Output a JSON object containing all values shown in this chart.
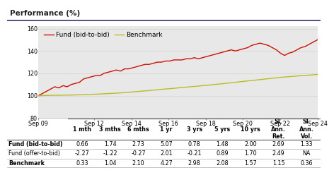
{
  "title": "Performance (%)",
  "title_color": "#3d2b6e",
  "title_underline_color": "#3d2b6e",
  "bg_color": "#ffffff",
  "chart_bg": "#e8e8e8",
  "fund_color": "#cc1100",
  "benchmark_color": "#bbbb22",
  "ylim": [
    80,
    162
  ],
  "yticks": [
    80,
    100,
    120,
    140,
    160
  ],
  "x_labels": [
    "Sep 09",
    "Sep 12",
    "Sep 14",
    "Sep 16",
    "Sep 18",
    "Sep 20",
    "Sep 22",
    "Sep 24"
  ],
  "x_positions": [
    0,
    3,
    5,
    7,
    9,
    11,
    13,
    15
  ],
  "legend_fund": "Fund (bid-to-bid)",
  "legend_bench": "Benchmark",
  "fund_data": [
    100,
    102,
    104,
    106,
    108,
    107,
    109,
    108,
    110,
    111,
    112,
    115,
    116,
    117,
    118,
    118,
    120,
    121,
    122,
    123,
    122,
    124,
    124,
    125,
    126,
    127,
    128,
    128,
    129,
    130,
    130,
    131,
    131,
    132,
    132,
    132,
    133,
    133,
    134,
    133,
    134,
    135,
    136,
    137,
    138,
    139,
    140,
    141,
    140,
    141,
    142,
    143,
    145,
    146,
    147,
    146,
    145,
    143,
    141,
    138,
    136,
    138,
    139,
    141,
    143,
    144,
    146,
    148,
    150
  ],
  "bench_data": [
    100,
    100.1,
    100.2,
    100.3,
    100.4,
    100.4,
    100.5,
    100.5,
    100.6,
    100.7,
    100.8,
    100.9,
    101.0,
    101.2,
    101.4,
    101.5,
    101.7,
    101.9,
    102.1,
    102.3,
    102.5,
    102.8,
    103.1,
    103.4,
    103.7,
    104.0,
    104.3,
    104.6,
    105.0,
    105.3,
    105.7,
    106.0,
    106.3,
    106.6,
    107.0,
    107.3,
    107.6,
    108.0,
    108.3,
    108.6,
    109.0,
    109.3,
    109.7,
    110.1,
    110.4,
    110.8,
    111.2,
    111.6,
    112.0,
    112.4,
    112.8,
    113.2,
    113.6,
    114.0,
    114.4,
    114.8,
    115.2,
    115.6,
    116.0,
    116.4,
    116.7,
    117.0,
    117.3,
    117.6,
    117.9,
    118.1,
    118.4,
    118.7,
    119.0
  ],
  "col_headers": [
    "1 mth",
    "3 mths",
    "6 mths",
    "1 yr",
    "3 yrs",
    "5 yrs",
    "10 yrs",
    "Sl.\nAnn.\nRet.",
    "Sl.\nAnn.\nVol."
  ],
  "row_labels": [
    "Fund (bid-to-bid)",
    "Fund (offer-to-bid)",
    "Benchmark"
  ],
  "table_data": [
    [
      "0.66",
      "1.74",
      "2.73",
      "5.07",
      "0.78",
      "1.48",
      "2.00",
      "2.69",
      "1.33"
    ],
    [
      "-2.27",
      "-1.22",
      "-0.27",
      "2.01",
      "-0.21",
      "0.89",
      "1.70",
      "2.49",
      "NA"
    ],
    [
      "0.33",
      "1.04",
      "2.10",
      "4.27",
      "2.98",
      "2.08",
      "1.57",
      "1.15",
      "0.36"
    ]
  ],
  "row_label_bold": [
    true,
    false,
    true
  ],
  "font_size_title": 7.5,
  "font_size_axis": 5.8,
  "font_size_table_header": 5.8,
  "font_size_table_data": 5.8,
  "font_size_legend": 6.5
}
